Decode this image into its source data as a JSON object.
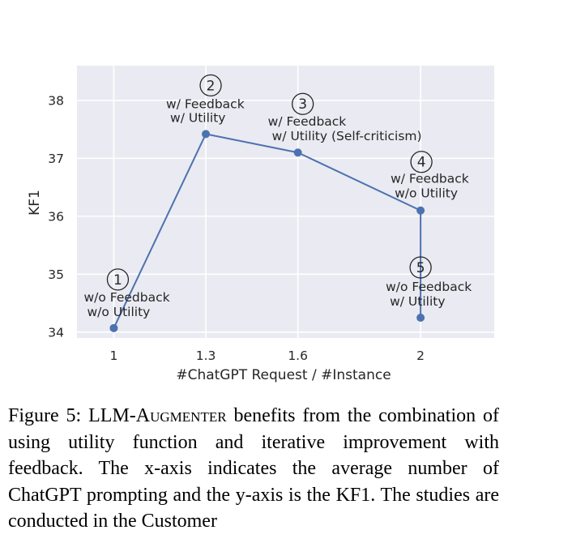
{
  "chart_data": {
    "type": "line",
    "xlabel": "#ChatGPT Request / #Instance",
    "ylabel": "KF1",
    "x_ticks": [
      "1",
      "1.3",
      "1.6",
      "2"
    ],
    "y_ticks": [
      "34",
      "35",
      "36",
      "37",
      "38"
    ],
    "xlim": [
      0.88,
      2.24
    ],
    "ylim": [
      33.9,
      38.6
    ],
    "grid": true,
    "legend": "none",
    "colors": {
      "line": "#4c72b0",
      "background": "#eaeaf2",
      "grid": "#ffffff"
    },
    "points": [
      {
        "x": 1.0,
        "y": 34.07,
        "marker": "1",
        "label_lines": [
          "w/o Feedback",
          "w/o Utility"
        ]
      },
      {
        "x": 1.3,
        "y": 37.42,
        "marker": "2",
        "label_lines": [
          "w/ Feedback",
          "w/ Utility"
        ]
      },
      {
        "x": 1.6,
        "y": 37.1,
        "marker": "3",
        "label_lines": [
          "w/ Feedback",
          "w/ Utility (Self-criticism)"
        ]
      },
      {
        "x": 2.0,
        "y": 36.1,
        "marker": "4",
        "label_lines": [
          "w/ Feedback",
          "w/o Utility"
        ]
      },
      {
        "x": 2.0,
        "y": 34.25,
        "marker": "5",
        "label_lines": [
          "w/o Feedback",
          "w/ Utility"
        ]
      }
    ]
  },
  "caption": {
    "prefix": "Figure 5: LLM-A",
    "smallcaps": "ugmenter",
    "rest": " benefits from the combination of using utility function and iterative improvement with feedback.  The x-axis indicates the average number of ChatGPT prompting and the y-axis is the KF1.  The studies are conducted in the Customer"
  }
}
